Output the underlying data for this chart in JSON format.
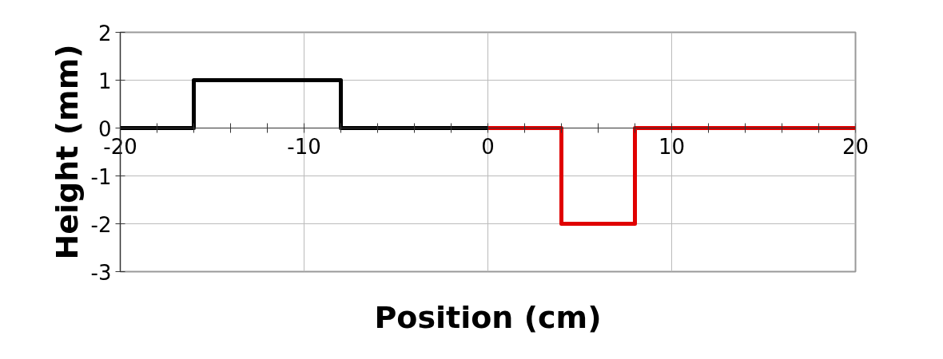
{
  "chart_data": {
    "type": "line",
    "xlabel": "Position (cm)",
    "ylabel": "Height (mm)",
    "series": [
      {
        "color": "#000000",
        "x": [
          -20,
          -16,
          -16,
          -8,
          -8,
          0
        ],
        "values": [
          0,
          0,
          1,
          1,
          0,
          0
        ]
      },
      {
        "color": "#e00000",
        "x": [
          0,
          4,
          4,
          8,
          8,
          20
        ],
        "values": [
          0,
          0,
          -2,
          -2,
          0,
          0
        ]
      }
    ],
    "xlim": [
      -20,
      20
    ],
    "ylim": [
      -3,
      2
    ],
    "xticks": [
      -20,
      {
        "value": -18,
        "label": null
      },
      {
        "value": -16,
        "label": null
      },
      {
        "value": -14,
        "label": null
      },
      {
        "value": -12,
        "label": null
      },
      -10,
      {
        "value": -8,
        "label": null
      },
      {
        "value": -6,
        "label": null
      },
      {
        "value": -4,
        "label": null
      },
      {
        "value": -2,
        "label": null
      },
      0,
      {
        "value": 2,
        "label": null
      },
      {
        "value": 4,
        "label": null
      },
      {
        "value": 6,
        "label": null
      },
      {
        "value": 8,
        "label": null
      },
      10,
      {
        "value": 12,
        "label": null
      },
      {
        "value": 14,
        "label": null
      },
      {
        "value": 16,
        "label": null
      },
      {
        "value": 18,
        "label": null
      },
      20
    ],
    "yticks": [
      -3,
      -2,
      -1,
      0,
      1,
      2
    ],
    "grid": true,
    "marker": "none",
    "line_style": "solid"
  }
}
